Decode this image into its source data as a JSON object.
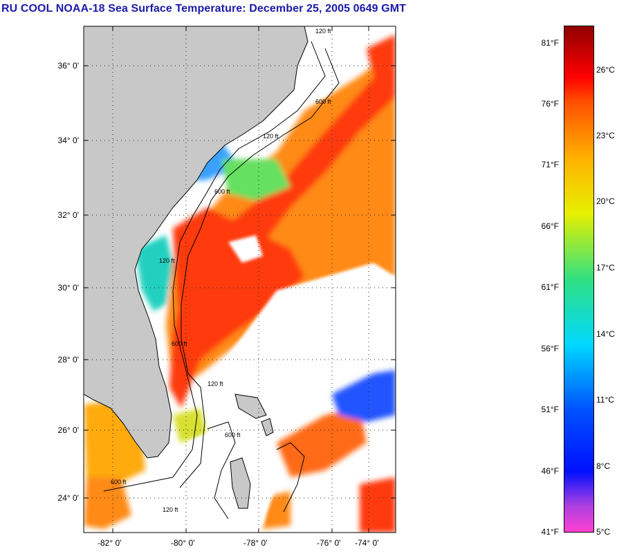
{
  "title": "RU COOL  NOAA-18  Sea Surface Temperature:  December 25, 2005 0649 GMT",
  "map": {
    "lat_labels": [
      "36° 0'",
      "34° 0'",
      "32° 0'",
      "30° 0'",
      "28° 0'",
      "26° 0'",
      "24° 0'"
    ],
    "lon_labels": [
      "-82° 0'",
      "-80° 0'",
      "-78° 0'",
      "-76° 0'",
      "-74° 0'"
    ],
    "contour_labels": [
      "120 ft",
      "600 ft",
      "120 ft",
      "600 ft",
      "120 ft",
      "600 ft",
      "120 ft",
      "600 ft",
      "120 ft",
      "600 ft"
    ],
    "colors": {
      "land": "#c8c8c8",
      "cloud": "#ffffff",
      "warm": "#ff3a10",
      "mid": "#ff8a18",
      "cool": "#2255ff"
    }
  },
  "colorbar": {
    "f_labels": [
      "81°F",
      "76°F",
      "71°F",
      "66°F",
      "61°F",
      "56°F",
      "51°F",
      "46°F",
      "41°F"
    ],
    "c_labels": [
      "26°C",
      "23°C",
      "20°C",
      "17°C",
      "14°C",
      "11°C",
      "8°C",
      "5°C"
    ]
  }
}
